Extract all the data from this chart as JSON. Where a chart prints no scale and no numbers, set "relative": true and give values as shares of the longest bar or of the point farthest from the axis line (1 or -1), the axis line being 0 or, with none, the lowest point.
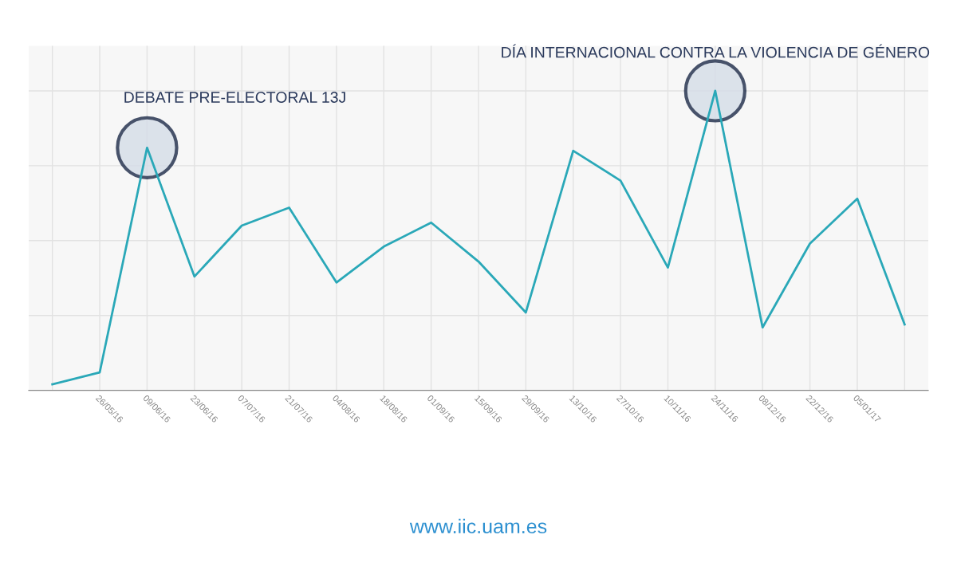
{
  "chart_data": {
    "type": "line",
    "relative": true,
    "grid": true,
    "categories": [
      null,
      "26/05/16",
      "09/06/16",
      "23/06/16",
      "07/07/16",
      "21/07/16",
      "04/08/16",
      "18/08/16",
      "01/09/16",
      "15/09/16",
      "29/09/16",
      "13/10/16",
      "27/10/16",
      "10/11/16",
      "24/11/16",
      "08/12/16",
      "22/12/16",
      "05/01/17",
      null
    ],
    "series": [
      {
        "color": "#2aa8b8",
        "values": [
          0.02,
          0.06,
          0.81,
          0.38,
          0.55,
          0.61,
          0.36,
          0.48,
          0.56,
          0.43,
          0.26,
          0.8,
          0.7,
          0.41,
          1.0,
          0.21,
          0.49,
          0.64,
          0.22
        ]
      }
    ],
    "annotations": [
      {
        "text": "DEBATE PRE-ELECTORAL 13J",
        "x": "09/06/16",
        "y": 0.81
      },
      {
        "text": "DÍA INTERNACIONAL CONTRA LA VIOLENCIA DE GÉNERO",
        "x": "24/11/16",
        "y": 1.0
      },
      "www.iic.uam.es"
    ]
  }
}
